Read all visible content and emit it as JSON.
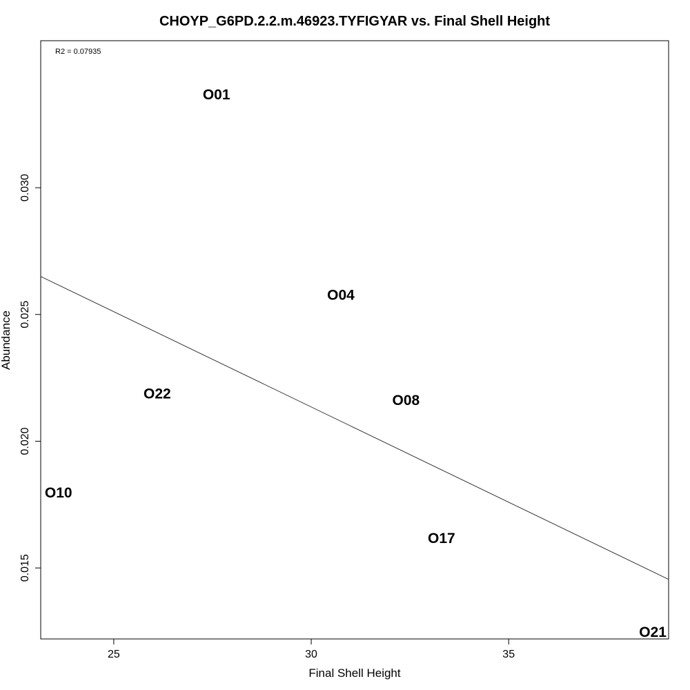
{
  "chart_data": {
    "type": "scatter",
    "title": "CHOYP_G6PD.2.2.m.46923.TYFIGYAR vs. Final Shell Height",
    "xlabel": "Final Shell Height",
    "ylabel": "Abundance",
    "xlim": [
      23.15,
      39.05
    ],
    "ylim": [
      0.0122,
      0.0358
    ],
    "xticks": [
      25,
      30,
      35
    ],
    "yticks": [
      0.015,
      0.02,
      0.025,
      0.03
    ],
    "xtick_labels": [
      "25",
      "30",
      "35"
    ],
    "ytick_labels": [
      "0.015",
      "0.020",
      "0.025",
      "0.030"
    ],
    "annotation": "R2 = 0.07935",
    "points": [
      {
        "label": "O01",
        "x": 27.6,
        "y": 0.0337
      },
      {
        "label": "O04",
        "x": 30.75,
        "y": 0.0258
      },
      {
        "label": "O22",
        "x": 26.1,
        "y": 0.0219
      },
      {
        "label": "O08",
        "x": 32.4,
        "y": 0.02165
      },
      {
        "label": "O10",
        "x": 23.6,
        "y": 0.018
      },
      {
        "label": "O17",
        "x": 33.3,
        "y": 0.0162
      },
      {
        "label": "O21",
        "x": 38.65,
        "y": 0.0125
      }
    ],
    "fit_line": {
      "x": [
        23.15,
        39.05
      ],
      "y": [
        0.0265,
        0.01455
      ]
    },
    "grid": false,
    "legend": "none"
  }
}
